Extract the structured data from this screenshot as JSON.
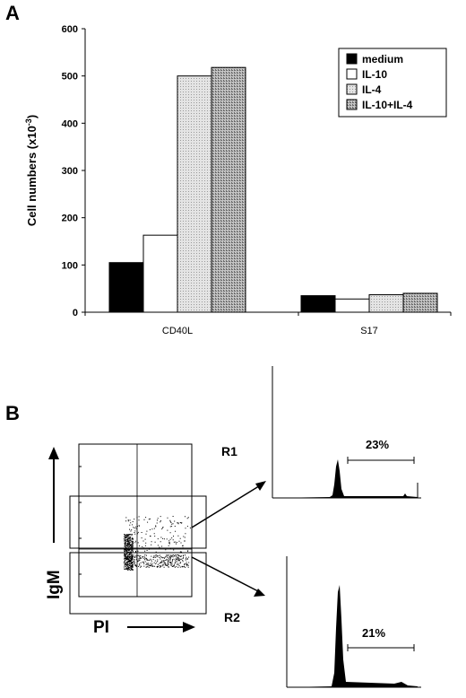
{
  "panel_a_label": "A",
  "panel_b_label": "B",
  "chart_data": {
    "type": "bar",
    "ylabel": "Cell numbers (x10",
    "ylabel_exp": "-3",
    "ylabel_close": ")",
    "ylim": [
      0,
      600
    ],
    "yticks": [
      "0",
      "100",
      "200",
      "300",
      "400",
      "500",
      "600"
    ],
    "categories": [
      "CD40L",
      "S17"
    ],
    "series": [
      {
        "name": "medium",
        "values": [
          105,
          35
        ],
        "color": "#000000"
      },
      {
        "name": "IL-10",
        "values": [
          163,
          28
        ],
        "color": "#ffffff"
      },
      {
        "name": "IL-4",
        "values": [
          500,
          37
        ],
        "color": "#d8d8d8"
      },
      {
        "name": "IL-10+IL-4",
        "values": [
          518,
          40
        ],
        "color": "#a8a8a8"
      }
    ],
    "legend_position": "top-right"
  },
  "flow": {
    "y_axis_label": "IgM",
    "x_axis_label": "PI",
    "gate_1": "R1",
    "gate_2": "R2",
    "hist_1_percent": "23%",
    "hist_2_percent": "21%"
  }
}
